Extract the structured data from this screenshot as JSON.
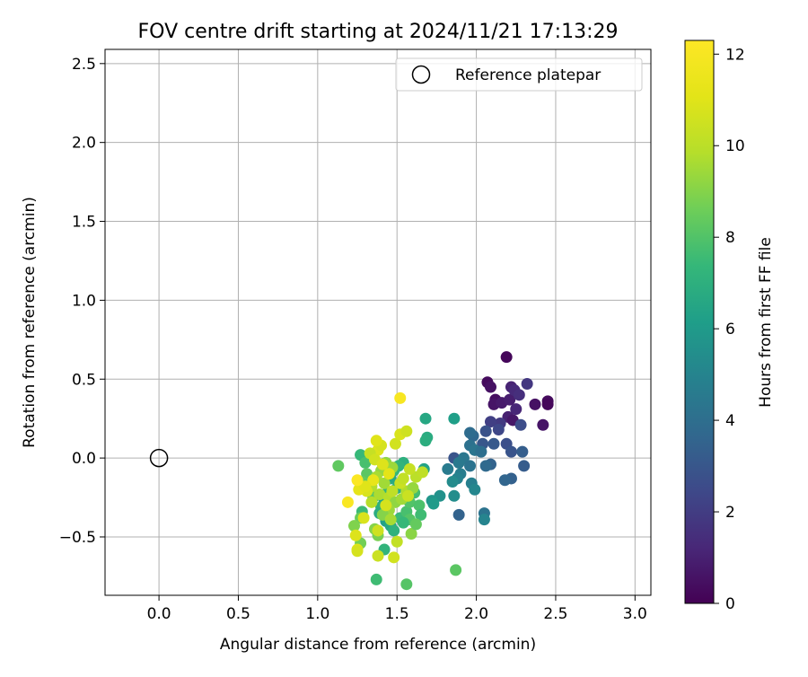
{
  "chart_data": {
    "type": "scatter",
    "title": "FOV centre drift starting at 2024/11/21 17:13:29",
    "xlabel": "Angular distance from reference (arcmin)",
    "ylabel": "Rotation from reference (arcmin)",
    "xlim": [
      -0.34,
      3.1
    ],
    "ylim": [
      -0.87,
      2.59
    ],
    "xticks": [
      "0.0",
      "0.5",
      "1.0",
      "1.5",
      "2.0",
      "2.5",
      "3.0"
    ],
    "xtick_values": [
      0,
      0.5,
      1.0,
      1.5,
      2.0,
      2.5,
      3.0
    ],
    "yticks": [
      "−0.5",
      "0.0",
      "0.5",
      "1.0",
      "1.5",
      "2.0",
      "2.5"
    ],
    "ytick_values": [
      -0.5,
      0,
      0.5,
      1.0,
      1.5,
      2.0,
      2.5
    ],
    "grid": true,
    "legend": {
      "position": "top-right",
      "entries": [
        "Reference platepar"
      ]
    },
    "reference_point": {
      "x": 0.0,
      "y": 0.0
    },
    "colorbar": {
      "label": "Hours from first FF file",
      "colormap": "viridis",
      "range": [
        0,
        12.3
      ],
      "ticks": [
        "0",
        "2",
        "4",
        "6",
        "8",
        "10",
        "12"
      ],
      "tick_values": [
        0,
        2,
        4,
        6,
        8,
        10,
        12
      ]
    },
    "points": [
      {
        "x": 2.19,
        "y": 0.64,
        "h": 0.2
      },
      {
        "x": 2.07,
        "y": 0.48,
        "h": 0.3
      },
      {
        "x": 2.09,
        "y": 0.45,
        "h": 0.5
      },
      {
        "x": 2.12,
        "y": 0.37,
        "h": 0.4
      },
      {
        "x": 2.11,
        "y": 0.34,
        "h": 0.6
      },
      {
        "x": 2.16,
        "y": 0.35,
        "h": 0.8
      },
      {
        "x": 2.21,
        "y": 0.37,
        "h": 0.9
      },
      {
        "x": 2.22,
        "y": 0.45,
        "h": 1.1
      },
      {
        "x": 2.24,
        "y": 0.43,
        "h": 1.3
      },
      {
        "x": 2.27,
        "y": 0.4,
        "h": 1.5
      },
      {
        "x": 2.25,
        "y": 0.31,
        "h": 1.2
      },
      {
        "x": 2.2,
        "y": 0.26,
        "h": 1.0
      },
      {
        "x": 2.23,
        "y": 0.24,
        "h": 0.7
      },
      {
        "x": 2.32,
        "y": 0.47,
        "h": 1.8
      },
      {
        "x": 2.37,
        "y": 0.34,
        "h": 0.5
      },
      {
        "x": 2.45,
        "y": 0.36,
        "h": 0.3
      },
      {
        "x": 2.45,
        "y": 0.34,
        "h": 0.2
      },
      {
        "x": 2.42,
        "y": 0.21,
        "h": 0.6
      },
      {
        "x": 2.15,
        "y": 0.22,
        "h": 1.9
      },
      {
        "x": 2.09,
        "y": 0.23,
        "h": 2.1
      },
      {
        "x": 2.14,
        "y": 0.18,
        "h": 2.4
      },
      {
        "x": 2.28,
        "y": 0.21,
        "h": 2.6
      },
      {
        "x": 2.06,
        "y": 0.17,
        "h": 2.8
      },
      {
        "x": 2.04,
        "y": 0.09,
        "h": 3.0
      },
      {
        "x": 2.11,
        "y": 0.09,
        "h": 3.1
      },
      {
        "x": 2.19,
        "y": 0.09,
        "h": 2.7
      },
      {
        "x": 2.22,
        "y": 0.04,
        "h": 2.9
      },
      {
        "x": 2.29,
        "y": 0.04,
        "h": 3.3
      },
      {
        "x": 2.3,
        "y": -0.05,
        "h": 3.2
      },
      {
        "x": 2.22,
        "y": -0.13,
        "h": 3.4
      },
      {
        "x": 2.18,
        "y": -0.14,
        "h": 3.6
      },
      {
        "x": 2.09,
        "y": -0.04,
        "h": 3.5
      },
      {
        "x": 2.06,
        "y": -0.05,
        "h": 3.8
      },
      {
        "x": 1.98,
        "y": 0.14,
        "h": 3.7
      },
      {
        "x": 1.96,
        "y": 0.16,
        "h": 3.9
      },
      {
        "x": 1.96,
        "y": 0.08,
        "h": 4.1
      },
      {
        "x": 1.99,
        "y": 0.05,
        "h": 4.3
      },
      {
        "x": 2.03,
        "y": 0.04,
        "h": 4.0
      },
      {
        "x": 1.86,
        "y": 0.0,
        "h": 2.9
      },
      {
        "x": 1.92,
        "y": 0.0,
        "h": 4.4
      },
      {
        "x": 1.89,
        "y": -0.03,
        "h": 4.5
      },
      {
        "x": 1.96,
        "y": -0.05,
        "h": 4.2
      },
      {
        "x": 1.82,
        "y": -0.07,
        "h": 4.6
      },
      {
        "x": 1.9,
        "y": -0.1,
        "h": 4.7
      },
      {
        "x": 1.88,
        "y": -0.13,
        "h": 4.9
      },
      {
        "x": 1.97,
        "y": -0.16,
        "h": 4.8
      },
      {
        "x": 1.99,
        "y": -0.2,
        "h": 5.1
      },
      {
        "x": 1.85,
        "y": -0.15,
        "h": 5.3
      },
      {
        "x": 1.86,
        "y": -0.24,
        "h": 5.4
      },
      {
        "x": 1.77,
        "y": -0.24,
        "h": 5.6
      },
      {
        "x": 1.72,
        "y": -0.27,
        "h": 5.8
      },
      {
        "x": 1.73,
        "y": -0.29,
        "h": 6.0
      },
      {
        "x": 1.89,
        "y": -0.36,
        "h": 3.5
      },
      {
        "x": 2.05,
        "y": -0.35,
        "h": 4.2
      },
      {
        "x": 2.05,
        "y": -0.39,
        "h": 5.0
      },
      {
        "x": 1.86,
        "y": 0.25,
        "h": 6.2
      },
      {
        "x": 1.68,
        "y": 0.25,
        "h": 6.6
      },
      {
        "x": 1.69,
        "y": 0.13,
        "h": 6.8
      },
      {
        "x": 1.68,
        "y": 0.11,
        "h": 6.9
      },
      {
        "x": 1.67,
        "y": -0.07,
        "h": 6.4
      },
      {
        "x": 1.54,
        "y": -0.03,
        "h": 7.0
      },
      {
        "x": 1.51,
        "y": -0.05,
        "h": 7.2
      },
      {
        "x": 1.48,
        "y": -0.08,
        "h": 7.4
      },
      {
        "x": 1.46,
        "y": -0.13,
        "h": 6.7
      },
      {
        "x": 1.5,
        "y": -0.19,
        "h": 6.9
      },
      {
        "x": 1.44,
        "y": -0.22,
        "h": 7.3
      },
      {
        "x": 1.42,
        "y": -0.27,
        "h": 6.5
      },
      {
        "x": 1.4,
        "y": -0.31,
        "h": 7.0
      },
      {
        "x": 1.39,
        "y": -0.35,
        "h": 6.8
      },
      {
        "x": 1.43,
        "y": -0.4,
        "h": 6.3
      },
      {
        "x": 1.46,
        "y": -0.43,
        "h": 6.6
      },
      {
        "x": 1.48,
        "y": -0.46,
        "h": 7.1
      },
      {
        "x": 1.52,
        "y": -0.38,
        "h": 7.5
      },
      {
        "x": 1.56,
        "y": -0.34,
        "h": 7.8
      },
      {
        "x": 1.58,
        "y": -0.28,
        "h": 8.0
      },
      {
        "x": 1.61,
        "y": -0.22,
        "h": 7.7
      },
      {
        "x": 1.64,
        "y": -0.3,
        "h": 7.9
      },
      {
        "x": 1.65,
        "y": -0.36,
        "h": 7.6
      },
      {
        "x": 1.58,
        "y": -0.39,
        "h": 8.1
      },
      {
        "x": 1.54,
        "y": -0.41,
        "h": 7.4
      },
      {
        "x": 1.27,
        "y": 0.02,
        "h": 7.4
      },
      {
        "x": 1.3,
        "y": -0.03,
        "h": 7.8
      },
      {
        "x": 1.31,
        "y": -0.1,
        "h": 8.2
      },
      {
        "x": 1.28,
        "y": -0.15,
        "h": 8.4
      },
      {
        "x": 1.33,
        "y": -0.2,
        "h": 8.6
      },
      {
        "x": 1.35,
        "y": -0.25,
        "h": 8.3
      },
      {
        "x": 1.28,
        "y": -0.34,
        "h": 7.5
      },
      {
        "x": 1.27,
        "y": -0.38,
        "h": 8.5
      },
      {
        "x": 1.23,
        "y": -0.43,
        "h": 8.9
      },
      {
        "x": 1.27,
        "y": -0.54,
        "h": 8.7
      },
      {
        "x": 1.36,
        "y": -0.45,
        "h": 9.0
      },
      {
        "x": 1.38,
        "y": -0.49,
        "h": 8.8
      },
      {
        "x": 1.42,
        "y": -0.58,
        "h": 7.2
      },
      {
        "x": 1.37,
        "y": -0.77,
        "h": 7.6
      },
      {
        "x": 1.56,
        "y": -0.8,
        "h": 8.1
      },
      {
        "x": 1.87,
        "y": -0.71,
        "h": 8.2
      },
      {
        "x": 1.59,
        "y": -0.48,
        "h": 9.1
      },
      {
        "x": 1.62,
        "y": -0.42,
        "h": 8.4
      },
      {
        "x": 1.13,
        "y": -0.05,
        "h": 8.3
      },
      {
        "x": 1.43,
        "y": -0.03,
        "h": 9.2
      },
      {
        "x": 1.47,
        "y": -0.06,
        "h": 9.4
      },
      {
        "x": 1.4,
        "y": -0.08,
        "h": 9.3
      },
      {
        "x": 1.37,
        "y": -0.12,
        "h": 9.6
      },
      {
        "x": 1.42,
        "y": -0.16,
        "h": 9.5
      },
      {
        "x": 1.34,
        "y": -0.18,
        "h": 9.8
      },
      {
        "x": 1.39,
        "y": -0.23,
        "h": 9.7
      },
      {
        "x": 1.45,
        "y": -0.25,
        "h": 9.9
      },
      {
        "x": 1.49,
        "y": -0.28,
        "h": 9.2
      },
      {
        "x": 1.45,
        "y": -0.33,
        "h": 9.4
      },
      {
        "x": 1.41,
        "y": -0.36,
        "h": 9.0
      },
      {
        "x": 1.46,
        "y": -0.39,
        "h": 9.6
      },
      {
        "x": 1.53,
        "y": -0.26,
        "h": 9.5
      },
      {
        "x": 1.56,
        "y": -0.21,
        "h": 9.8
      },
      {
        "x": 1.6,
        "y": -0.19,
        "h": 9.3
      },
      {
        "x": 1.62,
        "y": -0.12,
        "h": 10.0
      },
      {
        "x": 1.66,
        "y": -0.09,
        "h": 10.1
      },
      {
        "x": 1.58,
        "y": -0.07,
        "h": 10.3
      },
      {
        "x": 1.52,
        "y": -0.16,
        "h": 10.4
      },
      {
        "x": 1.5,
        "y": -0.53,
        "h": 10.2
      },
      {
        "x": 1.48,
        "y": -0.63,
        "h": 10.6
      },
      {
        "x": 1.38,
        "y": -0.46,
        "h": 10.5
      },
      {
        "x": 1.29,
        "y": -0.38,
        "h": 10.8
      },
      {
        "x": 1.24,
        "y": -0.49,
        "h": 10.9
      },
      {
        "x": 1.25,
        "y": -0.58,
        "h": 11.0
      },
      {
        "x": 1.25,
        "y": -0.59,
        "h": 10.7
      },
      {
        "x": 1.38,
        "y": -0.62,
        "h": 10.4
      },
      {
        "x": 1.31,
        "y": -0.21,
        "h": 10.8
      },
      {
        "x": 1.26,
        "y": -0.2,
        "h": 11.2
      },
      {
        "x": 1.38,
        "y": 0.05,
        "h": 10.9
      },
      {
        "x": 1.4,
        "y": 0.08,
        "h": 10.7
      },
      {
        "x": 1.37,
        "y": 0.11,
        "h": 11.0
      },
      {
        "x": 1.49,
        "y": 0.09,
        "h": 10.6
      },
      {
        "x": 1.52,
        "y": 0.15,
        "h": 10.8
      },
      {
        "x": 1.56,
        "y": 0.17,
        "h": 10.5
      },
      {
        "x": 1.33,
        "y": 0.03,
        "h": 10.3
      },
      {
        "x": 1.36,
        "y": -0.01,
        "h": 10.6
      },
      {
        "x": 1.41,
        "y": -0.04,
        "h": 10.9
      },
      {
        "x": 1.45,
        "y": -0.1,
        "h": 11.1
      },
      {
        "x": 1.35,
        "y": -0.14,
        "h": 11.3
      },
      {
        "x": 1.3,
        "y": -0.18,
        "h": 11.0
      },
      {
        "x": 1.25,
        "y": -0.14,
        "h": 12.2
      },
      {
        "x": 1.19,
        "y": -0.28,
        "h": 12.1
      },
      {
        "x": 1.52,
        "y": 0.38,
        "h": 12.0
      },
      {
        "x": 1.54,
        "y": -0.13,
        "h": 10.2
      },
      {
        "x": 1.57,
        "y": -0.24,
        "h": 10.4
      },
      {
        "x": 1.43,
        "y": -0.3,
        "h": 10.7
      },
      {
        "x": 1.34,
        "y": -0.28,
        "h": 9.9
      },
      {
        "x": 1.47,
        "y": -0.21,
        "h": 10.1
      }
    ]
  }
}
